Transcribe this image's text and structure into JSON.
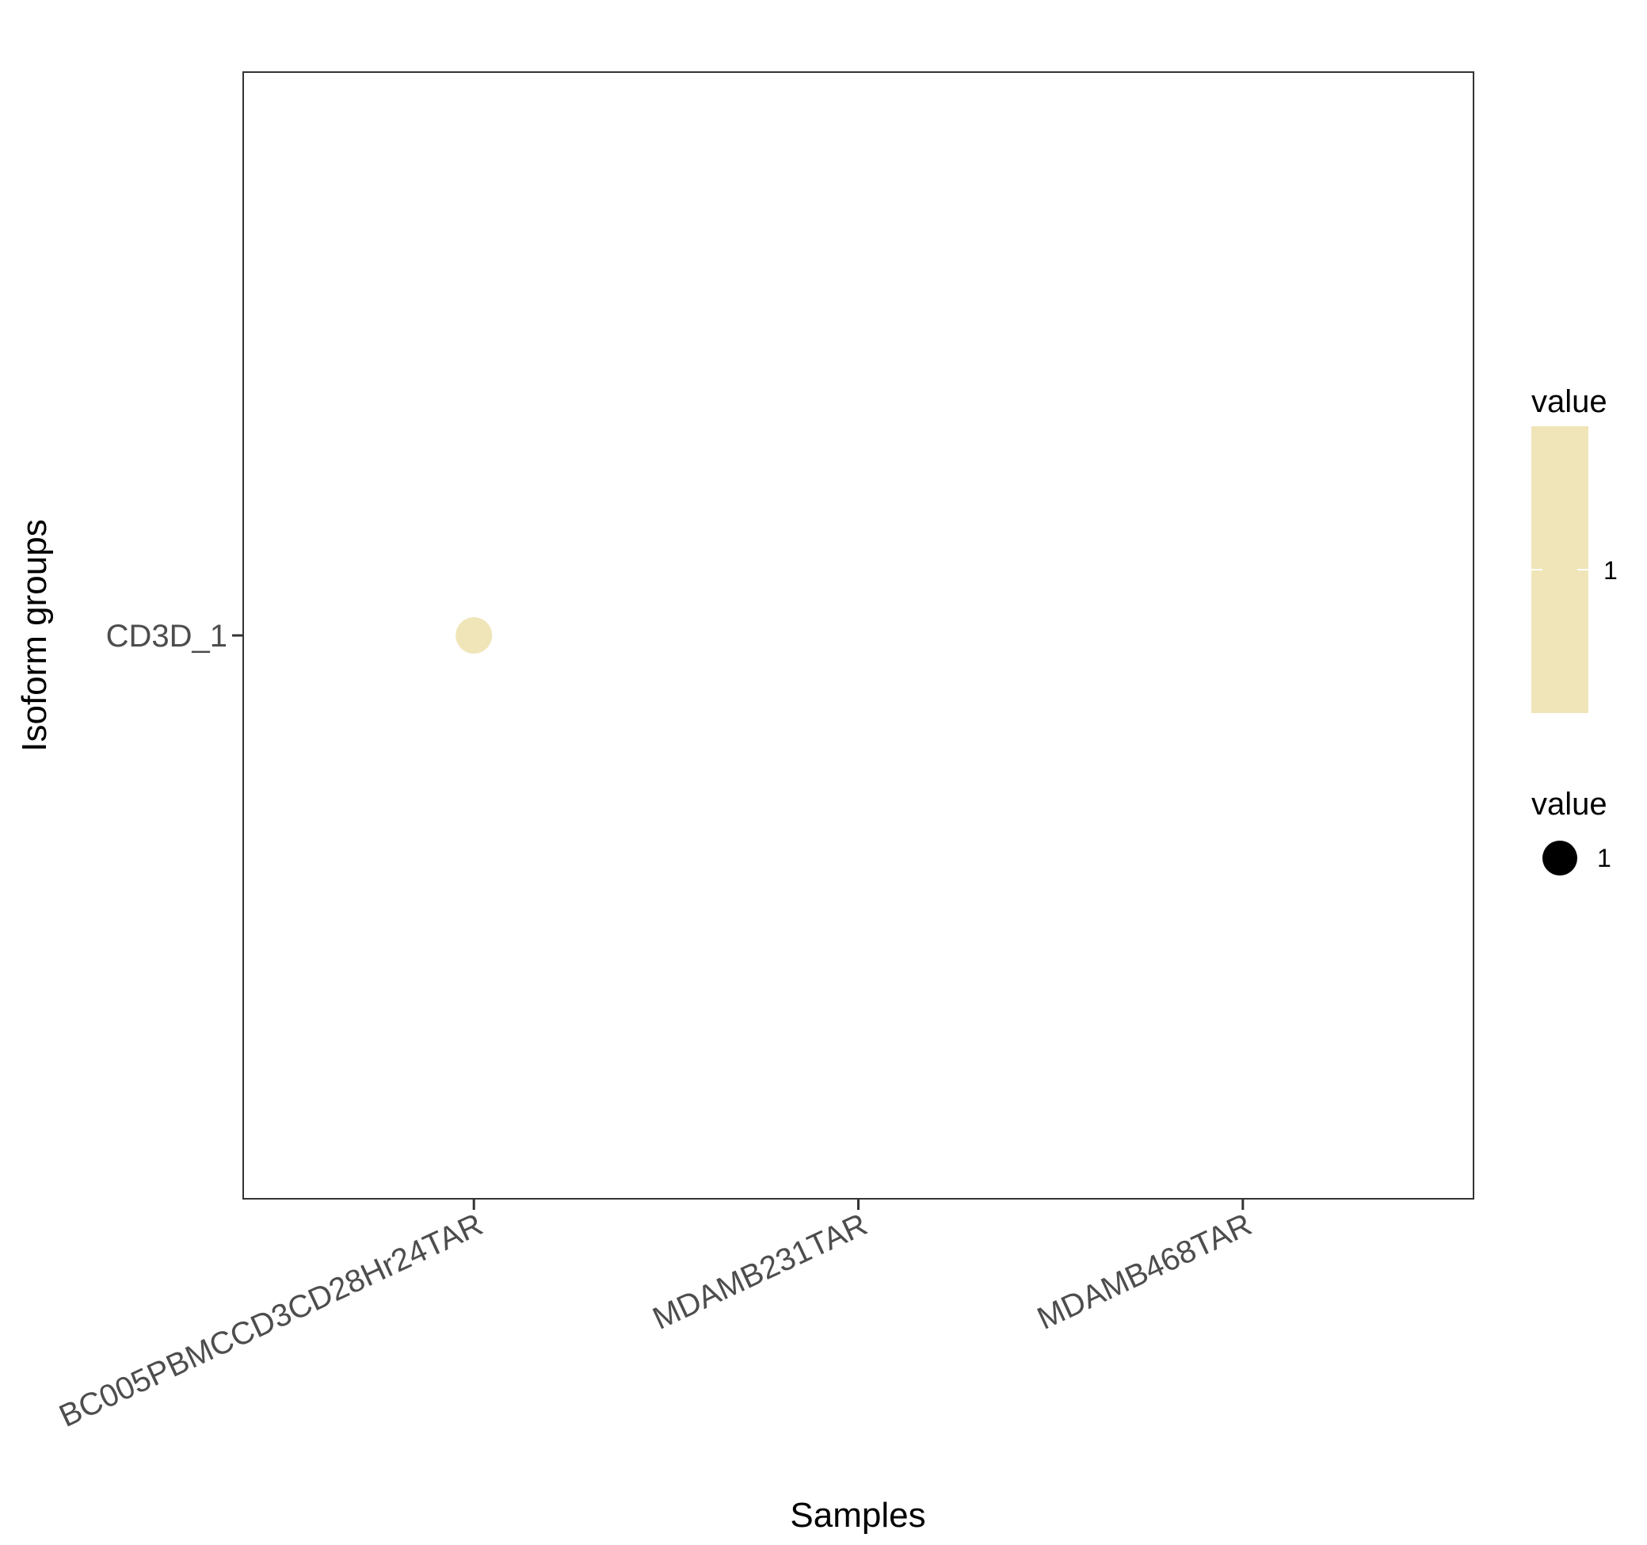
{
  "chart_data": {
    "type": "scatter",
    "xlabel": "Samples",
    "ylabel": "Isoform groups",
    "x_categories": [
      "BC005PBMCCD3CD28Hr24TAR",
      "MDAMB231TAR",
      "MDAMB468TAR"
    ],
    "y_categories": [
      "CD3D_1"
    ],
    "points": [
      {
        "x": "BC005PBMCCD3CD28Hr24TAR",
        "y": "CD3D_1",
        "value": 1
      }
    ],
    "grid": false,
    "legend_position": "right",
    "legends": [
      {
        "title": "value",
        "kind": "colorbar",
        "ticks": [
          "1"
        ]
      },
      {
        "title": "value",
        "kind": "size",
        "entries": [
          "1"
        ]
      }
    ],
    "colors": {
      "point": "#f0e5b8",
      "colorbar": "#f0e5b8",
      "size_key": "#000000",
      "panel_border": "#333333"
    }
  }
}
